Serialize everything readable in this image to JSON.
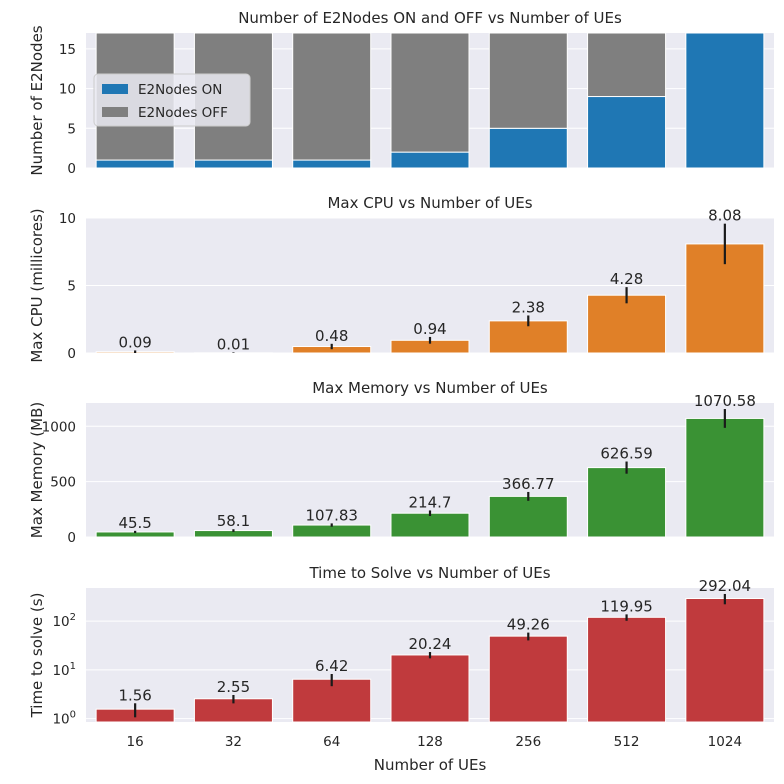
{
  "chart_data": [
    {
      "type": "bar",
      "stacked": true,
      "title": "Number of E2Nodes ON and OFF vs Number of UEs",
      "xlabel": "",
      "ylabel": "Number of E2Nodes",
      "categories": [
        "16",
        "32",
        "64",
        "128",
        "256",
        "512",
        "1024"
      ],
      "ylim": [
        0,
        17
      ],
      "yticks": [
        "0",
        "5",
        "10",
        "15"
      ],
      "grid": true,
      "legend": "upper-left",
      "series": [
        {
          "name": "E2Nodes ON",
          "color": "#1f77b4",
          "values": [
            1,
            1,
            1,
            2,
            5,
            9,
            17
          ]
        },
        {
          "name": "E2Nodes OFF",
          "color": "#7f7f7f",
          "values": [
            16,
            16,
            16,
            15,
            12,
            8,
            0
          ]
        }
      ]
    },
    {
      "type": "bar",
      "title": "Max CPU vs Number of UEs",
      "xlabel": "",
      "ylabel": "Max CPU (millicores)",
      "categories": [
        "16",
        "32",
        "64",
        "128",
        "256",
        "512",
        "1024"
      ],
      "ylim": [
        0,
        10
      ],
      "yticks": [
        "0",
        "5",
        "10"
      ],
      "grid": true,
      "color": "#e08028",
      "values": [
        0.09,
        0.01,
        0.48,
        0.94,
        2.38,
        4.28,
        8.08
      ],
      "labels": [
        "0.09",
        "0.01",
        "0.48",
        "0.94",
        "2.38",
        "4.28",
        "8.08"
      ],
      "errors": [
        0.1,
        0.03,
        0.2,
        0.25,
        0.4,
        0.6,
        1.5
      ]
    },
    {
      "type": "bar",
      "title": "Max Memory vs Number of UEs",
      "xlabel": "",
      "ylabel": "Max Memory (MB)",
      "categories": [
        "16",
        "32",
        "64",
        "128",
        "256",
        "512",
        "1024"
      ],
      "ylim": [
        0,
        1210
      ],
      "yticks": [
        "0",
        "500",
        "1000"
      ],
      "grid": true,
      "color": "#3a9234",
      "values": [
        45.5,
        58.1,
        107.83,
        214.7,
        366.77,
        626.59,
        1070.58
      ],
      "labels": [
        "45.5",
        "58.1",
        "107.83",
        "214.7",
        "366.77",
        "626.59",
        "1070.58"
      ],
      "errors": [
        10,
        12,
        15,
        25,
        40,
        55,
        85
      ]
    },
    {
      "type": "bar",
      "yscale": "log",
      "title": "Time to Solve vs Number of UEs",
      "xlabel": "Number of UEs",
      "ylabel": "Time to solve (s)",
      "categories": [
        "16",
        "32",
        "64",
        "128",
        "256",
        "512",
        "1024"
      ],
      "ylim": [
        0.85,
        480
      ],
      "yticks": [
        "10^0",
        "10^1",
        "10^2"
      ],
      "grid": true,
      "color": "#c03a3d",
      "values": [
        1.56,
        2.55,
        6.42,
        20.24,
        49.26,
        119.95,
        292.04
      ],
      "labels": [
        "1.56",
        "2.55",
        "6.42",
        "20.24",
        "49.26",
        "119.95",
        "292.04"
      ],
      "errors": [
        0.5,
        0.5,
        1.8,
        3,
        9,
        18,
        70
      ]
    }
  ]
}
